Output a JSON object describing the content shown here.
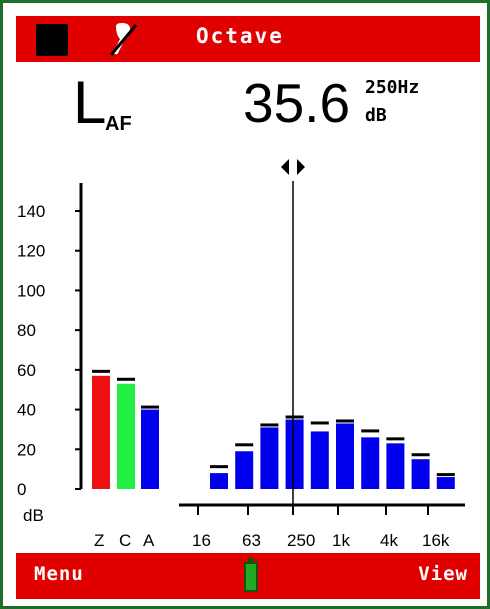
{
  "header": {
    "title": "Octave",
    "stop_icon": "stop-square-icon",
    "mic_icon": "microphone-off-icon"
  },
  "measurement": {
    "parameter": "L",
    "parameter_sub": "AF",
    "value": "35.6",
    "frequency": "250Hz",
    "unit": "dB"
  },
  "footer": {
    "left_label": "Menu",
    "right_label": "View",
    "battery_icon": "battery-icon"
  },
  "colors": {
    "bar_red": "#ee1111",
    "bar_green": "#22ee44",
    "bar_blue": "#0000ee",
    "topbar": "#e00000"
  },
  "chart_data": {
    "type": "bar",
    "ylabel": "dB",
    "ylim": [
      0,
      140
    ],
    "yticks": [
      "140",
      "120",
      "100",
      "80",
      "60",
      "40",
      "20",
      "0"
    ],
    "broadband": {
      "categories": [
        "Z",
        "C",
        "A"
      ],
      "values": [
        57,
        53,
        40
      ],
      "max_hold": [
        59,
        55,
        41
      ],
      "colors": [
        "#ee1111",
        "#22ee44",
        "#0000ee"
      ]
    },
    "octave": {
      "tick_labels": [
        "16",
        "63",
        "250",
        "1k",
        "4k",
        "16k"
      ],
      "values": [
        8,
        19,
        31,
        35,
        29,
        33,
        26,
        23,
        15,
        6
      ],
      "max_hold": [
        11,
        22,
        32,
        36,
        33,
        34,
        29,
        25,
        17,
        7
      ],
      "cursor": "250Hz"
    }
  }
}
